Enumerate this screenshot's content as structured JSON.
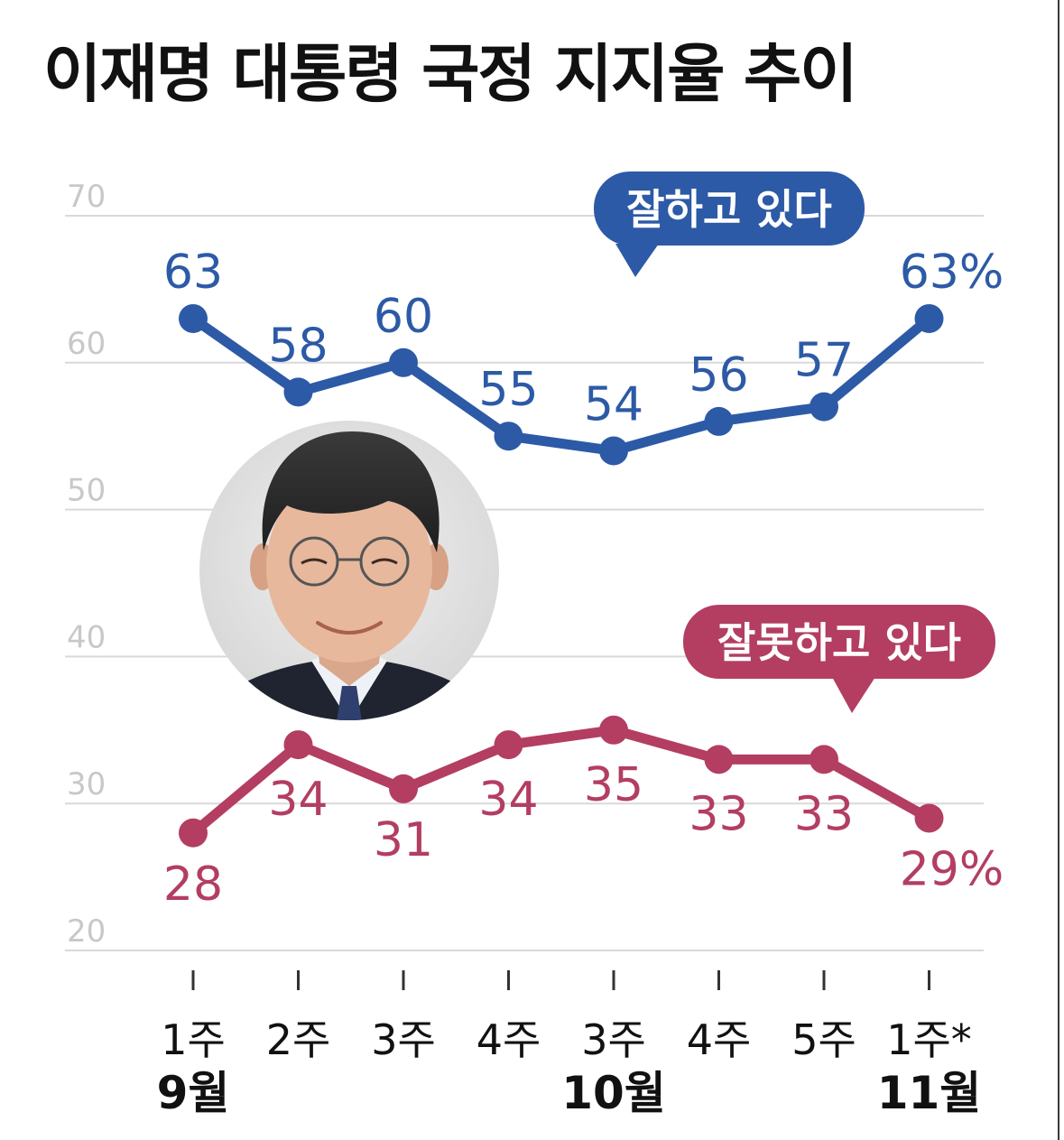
{
  "chart_data": {
    "type": "line",
    "title": "이재명 대통령 국정 지지율 추이",
    "ylim": [
      20,
      70
    ],
    "yticks": [
      70,
      60,
      50,
      40,
      30,
      20
    ],
    "grid": true,
    "categories": [
      "1주",
      "2주",
      "3주",
      "4주",
      "3주",
      "4주",
      "5주",
      "1주*"
    ],
    "month_labels": [
      {
        "index": 0,
        "label": "9월"
      },
      {
        "index": 4,
        "label": "10월"
      },
      {
        "index": 7,
        "label": "11월"
      }
    ],
    "series": [
      {
        "name": "잘하고 있다",
        "color": "#2d5aa6",
        "values": [
          63,
          58,
          60,
          55,
          54,
          56,
          57,
          63
        ],
        "labels": [
          "63",
          "58",
          "60",
          "55",
          "54",
          "56",
          "57",
          "63%"
        ]
      },
      {
        "name": "잘못하고 있다",
        "color": "#b33e62",
        "values": [
          28,
          34,
          31,
          34,
          35,
          33,
          33,
          29
        ],
        "labels": [
          "28",
          "34",
          "31",
          "34",
          "35",
          "33",
          "33",
          "29%"
        ]
      }
    ]
  },
  "photo": {
    "icon": "president-portrait"
  },
  "colors": {
    "grid": "#d9d9d9",
    "tick_text": "#c8c8c8",
    "axis_text": "#111111"
  }
}
